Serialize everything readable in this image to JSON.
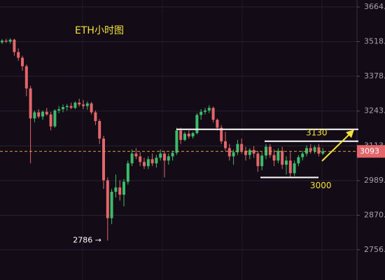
{
  "chart_data": {
    "type": "candlestick",
    "title": "ETH小时图",
    "log_scale": true,
    "grid": true,
    "up_color": "#3dbb6c",
    "down_color": "#e2666a",
    "ylim": [
      2660,
      3694
    ],
    "yticks": [
      {
        "value": 3664,
        "label": "3664."
      },
      {
        "value": 3518,
        "label": "3518."
      },
      {
        "value": 3378,
        "label": "3378."
      },
      {
        "value": 3243,
        "label": "3243."
      },
      {
        "value": 3113,
        "label": "3113."
      },
      {
        "value": 2989,
        "label": "2989."
      },
      {
        "value": 2870,
        "label": "2870."
      },
      {
        "value": 2756,
        "label": "2756."
      }
    ],
    "open": [
      3515,
      3522,
      3518,
      3526,
      3475,
      3452,
      3418,
      3330,
      3215,
      3238,
      3222,
      3240,
      3230,
      3185,
      3245,
      3250,
      3258,
      3262,
      3255,
      3275,
      3268,
      3262,
      3272,
      3238,
      3205,
      3140,
      2990,
      2860,
      2950,
      2965,
      2940,
      2985,
      3050,
      3085,
      3075,
      3055,
      3040,
      3065,
      3050,
      3070,
      3085,
      3060,
      3075,
      3088,
      3170,
      3135,
      3158,
      3148,
      3160,
      3228,
      3240,
      3245,
      3255,
      3210,
      3180,
      3130,
      3105,
      3075,
      3090,
      3120,
      3095,
      3080,
      3098,
      3085,
      3040,
      3078,
      3110,
      3080,
      3060,
      3095,
      3045,
      3060,
      3015,
      3050,
      3072,
      3085,
      3105,
      3095,
      3108,
      3085
    ],
    "high": [
      3528,
      3530,
      3532,
      3530,
      3490,
      3460,
      3425,
      3340,
      3245,
      3250,
      3245,
      3255,
      3240,
      3250,
      3262,
      3268,
      3270,
      3275,
      3280,
      3290,
      3285,
      3280,
      3278,
      3245,
      3212,
      3150,
      3000,
      2960,
      3010,
      2990,
      2995,
      3060,
      3100,
      3105,
      3090,
      3070,
      3075,
      3085,
      3080,
      3100,
      3095,
      3085,
      3095,
      3180,
      3180,
      3165,
      3170,
      3165,
      3235,
      3250,
      3255,
      3265,
      3260,
      3215,
      3190,
      3165,
      3120,
      3100,
      3135,
      3140,
      3110,
      3105,
      3112,
      3095,
      3090,
      3120,
      3120,
      3100,
      3105,
      3110,
      3075,
      3090,
      3060,
      3080,
      3095,
      3115,
      3120,
      3115,
      3120,
      3105
    ],
    "low": [
      3508,
      3512,
      3510,
      3460,
      3440,
      3400,
      3300,
      3050,
      3200,
      3215,
      3210,
      3225,
      3170,
      3180,
      3235,
      3238,
      3245,
      3250,
      3250,
      3260,
      3250,
      3248,
      3230,
      3190,
      3120,
      2960,
      2786,
      2840,
      2930,
      2920,
      2900,
      2975,
      3040,
      3065,
      3040,
      3030,
      3030,
      3040,
      3035,
      3060,
      3000,
      3045,
      3060,
      3080,
      3120,
      3130,
      3140,
      3140,
      3155,
      3210,
      3230,
      3235,
      3200,
      3170,
      3120,
      3095,
      3060,
      3045,
      3080,
      3085,
      3060,
      3065,
      3070,
      3020,
      3025,
      3065,
      3070,
      3040,
      3050,
      3030,
      3010,
      3000,
      3005,
      3040,
      3060,
      3075,
      3085,
      3085,
      3075,
      3080
    ],
    "close": [
      3522,
      3518,
      3526,
      3475,
      3452,
      3418,
      3330,
      3215,
      3238,
      3222,
      3240,
      3230,
      3185,
      3245,
      3250,
      3258,
      3262,
      3255,
      3275,
      3268,
      3262,
      3272,
      3238,
      3205,
      3140,
      2990,
      2860,
      2950,
      2965,
      2940,
      2985,
      3050,
      3085,
      3075,
      3055,
      3040,
      3065,
      3050,
      3070,
      3085,
      3060,
      3075,
      3088,
      3170,
      3135,
      3158,
      3148,
      3160,
      3228,
      3240,
      3245,
      3255,
      3210,
      3180,
      3130,
      3105,
      3075,
      3090,
      3120,
      3095,
      3080,
      3098,
      3085,
      3040,
      3078,
      3110,
      3080,
      3060,
      3095,
      3045,
      3060,
      3015,
      3050,
      3072,
      3085,
      3105,
      3095,
      3108,
      3085,
      3093
    ],
    "last_price": {
      "value": 3093,
      "label": "3093",
      "color": "#e2666a",
      "line_color": "#e8a040"
    },
    "levels": [
      {
        "value": 3174
      },
      {
        "value": 3130,
        "label": "3130"
      },
      {
        "value": 3000,
        "label": "3000"
      }
    ],
    "low_marker": {
      "value": 2786,
      "label": "2786 →"
    }
  }
}
